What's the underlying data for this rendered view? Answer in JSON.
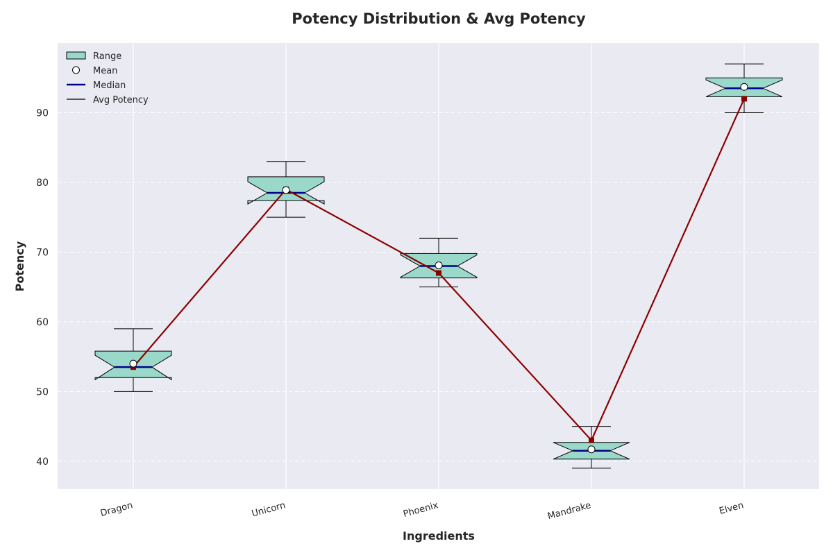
{
  "chart_data": {
    "type": "box",
    "title": "Potency Distribution & Avg Potency",
    "xlabel": "Ingredients",
    "ylabel": "Potency",
    "categories": [
      "Dragon",
      "Unicorn",
      "Phoenix",
      "Mandrake",
      "Elven"
    ],
    "ylim": [
      36,
      100
    ],
    "yticks": [
      40,
      50,
      60,
      70,
      80,
      90
    ],
    "grid": true,
    "legend_position": "top-left",
    "legend": [
      "Range",
      "Mean",
      "Median",
      "Avg Potency"
    ],
    "boxes": [
      {
        "category": "Dragon",
        "min": 50,
        "q1": 52.0,
        "median": 53.5,
        "q3": 55.8,
        "max": 59,
        "mean": 54.0,
        "notch_low": 51.7,
        "notch_high": 55.2
      },
      {
        "category": "Unicorn",
        "min": 75,
        "q1": 77.4,
        "median": 78.5,
        "q3": 80.8,
        "max": 83,
        "mean": 78.9,
        "notch_low": 76.9,
        "notch_high": 80.1
      },
      {
        "category": "Phoenix",
        "min": 65,
        "q1": 66.3,
        "median": 68.0,
        "q3": 69.8,
        "max": 72,
        "mean": 68.1,
        "notch_low": 66.4,
        "notch_high": 69.6
      },
      {
        "category": "Mandrake",
        "min": 39,
        "q1": 40.3,
        "median": 41.5,
        "q3": 42.7,
        "max": 45,
        "mean": 41.7,
        "notch_low": 40.3,
        "notch_high": 42.7
      },
      {
        "category": "Elven",
        "min": 90,
        "q1": 92.3,
        "median": 93.5,
        "q3": 95.0,
        "max": 97,
        "mean": 93.7,
        "notch_low": 92.3,
        "notch_high": 94.7
      }
    ],
    "series": [
      {
        "name": "Avg Potency",
        "values": [
          53.5,
          79,
          67,
          43,
          92
        ]
      }
    ],
    "colors": {
      "box_fill": "#9ad9c9",
      "median": "#00008b",
      "line": "#8b0000",
      "plot_bg": "#eaeaf2"
    }
  }
}
